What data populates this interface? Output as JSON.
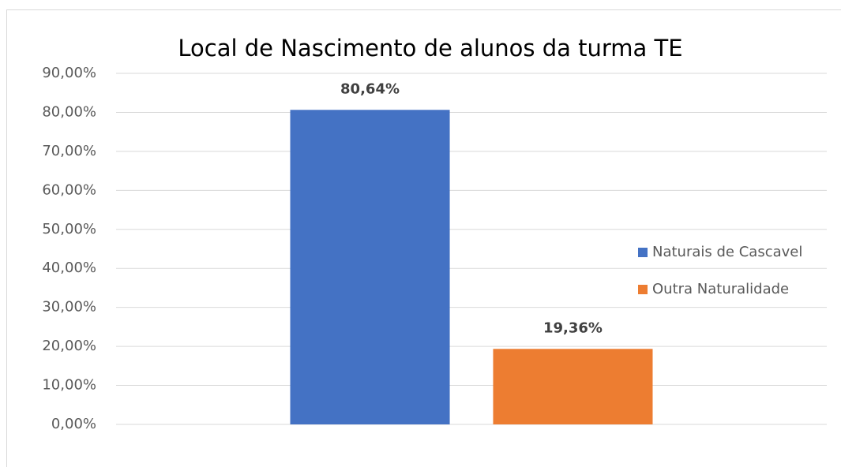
{
  "chart_data": {
    "type": "bar",
    "title": "Local de Nascimento de alunos da turma TE",
    "categories": [
      null
    ],
    "series": [
      {
        "name": "Naturais de Cascavel",
        "color": "#4472c4",
        "values": [
          80.64
        ],
        "value_labels": [
          "80,64%"
        ]
      },
      {
        "name": "Outra Naturalidade",
        "color": "#ed7d31",
        "values": [
          19.36
        ],
        "value_labels": [
          "19,36%"
        ]
      }
    ],
    "ylim": [
      0,
      90
    ],
    "yticks": [
      {
        "value": 0,
        "label": "0,00%"
      },
      {
        "value": 10,
        "label": "10,00%"
      },
      {
        "value": 20,
        "label": "20,00%"
      },
      {
        "value": 30,
        "label": "30,00%"
      },
      {
        "value": 40,
        "label": "40,00%"
      },
      {
        "value": 50,
        "label": "50,00%"
      },
      {
        "value": 60,
        "label": "60,00%"
      },
      {
        "value": 70,
        "label": "70,00%"
      },
      {
        "value": 80,
        "label": "80,00%"
      },
      {
        "value": 90,
        "label": "90,00%"
      }
    ],
    "grid": true,
    "legend": "right"
  }
}
